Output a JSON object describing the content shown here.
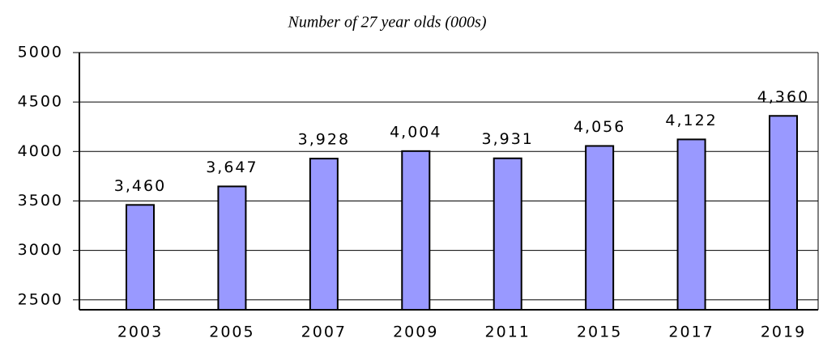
{
  "chart_data": {
    "type": "bar",
    "title": "Number of 27 year olds (000s)",
    "categories": [
      "2003",
      "2005",
      "2007",
      "2009",
      "2011",
      "2015",
      "2017",
      "2019"
    ],
    "values": [
      3460,
      3647,
      3928,
      4004,
      3931,
      4056,
      4122,
      4360
    ],
    "value_labels": [
      "3,460",
      "3,647",
      "3,928",
      "4,004",
      "3,931",
      "4,056",
      "4,122",
      "4,360"
    ],
    "color": "#9999ff",
    "ylim": [
      2400,
      5000
    ],
    "yticks": [
      2500,
      3000,
      3500,
      4000,
      4500,
      5000
    ],
    "grid": true
  }
}
